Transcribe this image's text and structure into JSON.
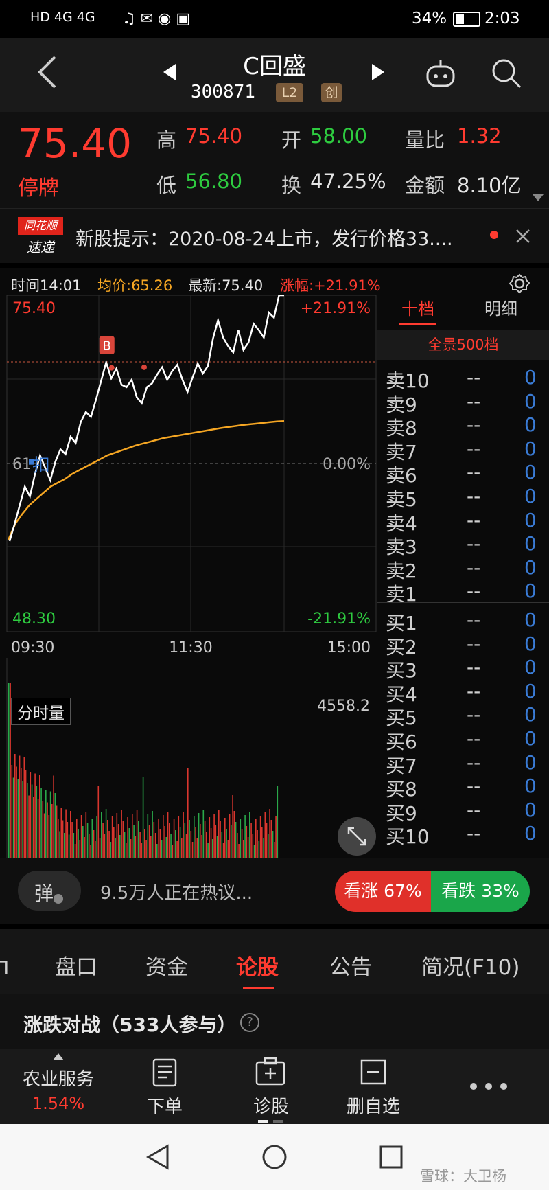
{
  "status_bar": {
    "left_icons": "HD 4G 4G",
    "battery": "34%",
    "time": "2:03"
  },
  "header": {
    "title": "C回盛",
    "code": "300871",
    "tags": [
      "L2",
      "创"
    ]
  },
  "quote": {
    "price": "75.40",
    "status": "停牌",
    "high_label": "高",
    "high": "75.40",
    "open_label": "开",
    "open": "58.00",
    "ratio_label": "量比",
    "ratio": "1.32",
    "low_label": "低",
    "low": "56.80",
    "turnover_label": "换",
    "turnover": "47.25%",
    "amount_label": "金额",
    "amount": "8.10亿"
  },
  "notice": {
    "logo_top": "同花顺",
    "logo_bottom": "速递",
    "text": "新股提示：2020-08-24上市，发行价格33...."
  },
  "chart_legend": {
    "time": "时间14:01",
    "avg": "均价:65.26",
    "latest": "最新:75.40",
    "change": "涨幅:+21.91%"
  },
  "chart_data": {
    "type": "line",
    "ylim": [
      48.3,
      75.4
    ],
    "y_labels_left": [
      "75.40",
      "48.30"
    ],
    "y_labels_right": [
      "+21.91%",
      "0.00%",
      "-21.91%"
    ],
    "x_labels": [
      "09:30",
      "11:30",
      "15:00"
    ],
    "base_label": "61",
    "marker_b": "B",
    "marker_s": "扣",
    "series": [
      {
        "values": [
          55.6,
          57,
          58.5,
          60,
          59.2,
          61,
          62.5,
          61.5,
          60.5,
          62,
          63,
          62.6,
          64,
          63.5,
          65.2,
          66,
          65.6,
          67,
          68.5,
          70,
          68.7,
          69.5,
          68.2,
          68,
          68.6,
          67.2,
          66.7,
          68,
          68.3,
          69,
          69.6,
          68.6,
          69.3,
          69.8,
          68.6,
          67.6,
          68.8,
          69.9,
          69.1,
          69.7,
          71.9,
          73.4,
          72,
          71.3,
          70.8,
          72.6,
          71,
          71.6,
          73.1,
          72.6,
          72,
          74,
          73.6,
          75.4,
          75.4
        ]
      },
      {
        "values": [
          55.7,
          57,
          57.8,
          58.5,
          59,
          59.5,
          60,
          60.3,
          60.6,
          61,
          61.3,
          61.6,
          61.9,
          62.2,
          62.5,
          62.7,
          62.9,
          63.1,
          63.3,
          63.45,
          63.6,
          63.75,
          63.9,
          64,
          64.1,
          64.2,
          64.3,
          64.4,
          64.5,
          64.6,
          64.7,
          64.78,
          64.86,
          64.94,
          65,
          65.06,
          65.12,
          65.18,
          65.24,
          65.26
        ]
      }
    ]
  },
  "volume": {
    "label": "分时量",
    "max": "4558.2"
  },
  "order_book": {
    "tab_active": "十档",
    "tab_other": "明细",
    "banner": "全景500档",
    "sell": [
      "卖10",
      "卖9",
      "卖8",
      "卖7",
      "卖6",
      "卖5",
      "卖4",
      "卖3",
      "卖2",
      "卖1"
    ],
    "buy": [
      "买1",
      "买2",
      "买3",
      "买4",
      "买5",
      "买6",
      "买7",
      "买8",
      "买9",
      "买10"
    ],
    "price_placeholder": "--",
    "qty_placeholder": "0"
  },
  "discussion": {
    "danmu_label": "弹",
    "text": "9.5万人正在热议...",
    "up_label": "看涨 67%",
    "down_label": "看跌 33%",
    "up_pct": 67
  },
  "tabs": [
    "盘口",
    "资金",
    "论股",
    "公告",
    "简况(F10)"
  ],
  "battle": {
    "title": "涨跌对战（533人参与）"
  },
  "toolbar": {
    "sector": "农业服务",
    "sector_change": "1.54%",
    "order": "下单",
    "diagnose": "诊股",
    "remove": "删自选"
  },
  "watermark": "雪球：大卫杨"
}
